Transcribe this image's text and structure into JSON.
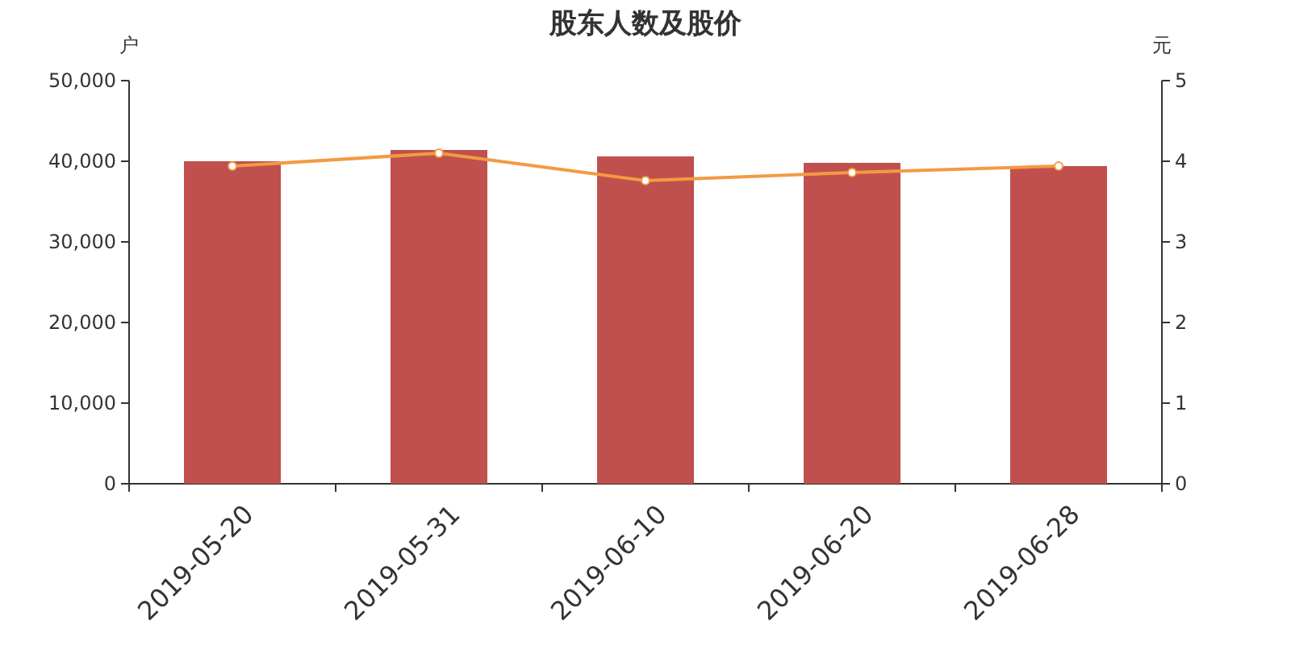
{
  "chart_data": {
    "type": "bar",
    "title": "股东人数及股价",
    "ylabel": "户",
    "y2label": "元",
    "categories": [
      "2019-05-20",
      "2019-05-31",
      "2019-06-10",
      "2019-06-20",
      "2019-06-28"
    ],
    "series": [
      {
        "color": "#c0504d",
        "values": [
          40000,
          41400,
          40600,
          39800,
          39400
        ]
      },
      {
        "type": "line",
        "axis": "y2",
        "color": "#f39a42",
        "marker": "circle",
        "values": [
          3.94,
          4.1,
          3.76,
          3.86,
          3.94
        ]
      }
    ],
    "ylim": [
      0,
      50000
    ],
    "yticks": [
      0,
      {
        "value": 10000,
        "label": "10,000"
      },
      {
        "value": 20000,
        "label": "20,000"
      },
      {
        "value": 30000,
        "label": "30,000"
      },
      {
        "value": 40000,
        "label": "40,000"
      },
      {
        "value": 50000,
        "label": "50,000"
      }
    ],
    "y2lim": [
      0,
      5
    ],
    "y2ticks": [
      0,
      1,
      2,
      3,
      4,
      5
    ],
    "grid": false
  }
}
